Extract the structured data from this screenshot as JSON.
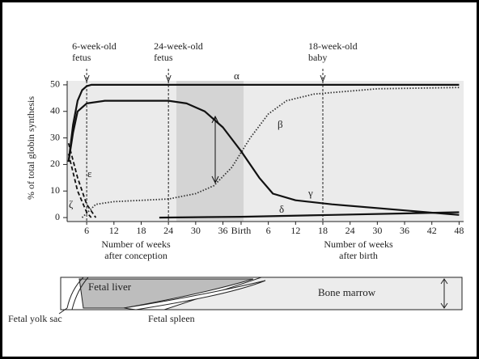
{
  "chart_data": {
    "type": "line",
    "y_label": "% of total globin synthesis",
    "x_label_before": [
      "Number of weeks",
      "after conception"
    ],
    "x_label_after": [
      "Number of weeks",
      "after birth"
    ],
    "xlim": [
      1.7,
      89
    ],
    "ylim": [
      -1.5,
      51.5
    ],
    "yticks": [
      0,
      10,
      20,
      30,
      40,
      50
    ],
    "xticks": [
      6,
      12,
      18,
      24,
      30,
      36,
      {
        "value": 40,
        "label": "Birth"
      },
      {
        "value": 46,
        "label": "6"
      },
      {
        "value": 52,
        "label": "12"
      },
      {
        "value": 58,
        "label": "18"
      },
      {
        "value": 64,
        "label": "24"
      },
      {
        "value": 70,
        "label": "30"
      },
      {
        "value": 76,
        "label": "36"
      },
      {
        "value": 82,
        "label": "42"
      },
      {
        "value": 88,
        "label": "48"
      }
    ],
    "markers": [
      {
        "x": 6,
        "label": [
          "6-week-old",
          "fetus"
        ]
      },
      {
        "x": 24,
        "label": [
          "24-week-old",
          "fetus"
        ]
      },
      {
        "x": 58,
        "label": [
          "18-week-old",
          "baby"
        ]
      }
    ],
    "series": [
      {
        "name": "α",
        "color": "#111111",
        "dash": "solid",
        "x": [
          2,
          3,
          4,
          5,
          6,
          7,
          10,
          40,
          88
        ],
        "values": [
          21,
          35,
          44,
          48,
          49.5,
          50,
          50,
          50,
          50
        ]
      },
      {
        "name": "β",
        "color": "#333333",
        "dash": "dotted",
        "x": [
          5,
          8,
          12,
          24,
          30,
          34,
          38,
          42,
          46,
          50,
          56,
          70,
          88
        ],
        "values": [
          0,
          5,
          6,
          7,
          9,
          12,
          19,
          30,
          39,
          44,
          46.5,
          48.5,
          49
        ]
      },
      {
        "name": "γ",
        "color": "#111111",
        "dash": "solid",
        "x": [
          2,
          3,
          4,
          6,
          10,
          24,
          28,
          32,
          36,
          40,
          44,
          47,
          52,
          60,
          88
        ],
        "values": [
          21,
          32,
          40,
          43,
          44,
          44,
          43,
          40,
          34,
          25,
          15,
          9,
          6.5,
          5,
          1
        ]
      },
      {
        "name": "δ",
        "color": "#111111",
        "dash": "solid",
        "x": [
          22,
          40,
          60,
          88
        ],
        "values": [
          0,
          0.3,
          1,
          2
        ]
      },
      {
        "name": "ε",
        "color": "#111111",
        "dash": "dashed",
        "x": [
          2,
          4,
          6,
          8
        ],
        "values": [
          28,
          15,
          5,
          0
        ]
      },
      {
        "name": "ζ",
        "color": "#111111",
        "dash": "dashed",
        "x": [
          2,
          4,
          6,
          7
        ],
        "values": [
          24,
          10,
          2,
          0
        ]
      }
    ]
  },
  "diagram": {
    "organs": [
      "Fetal liver",
      "Bone marrow",
      "Fetal yolk sac",
      "Fetal spleen"
    ]
  }
}
